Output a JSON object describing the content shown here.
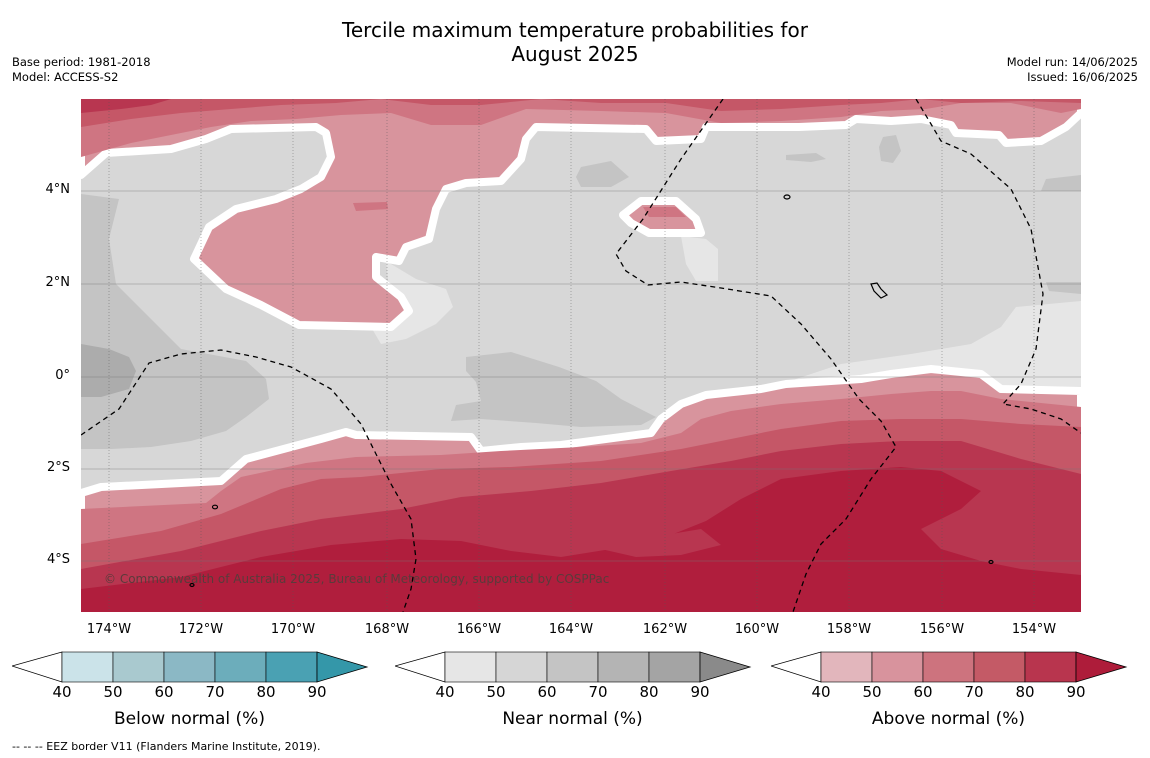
{
  "title": {
    "line1": "Tercile maximum temperature probabilities for",
    "line2": "August 2025"
  },
  "meta_left": {
    "base_period": "Base period: 1981-2018",
    "model": "Model: ACCESS-S2"
  },
  "meta_right": {
    "model_run": "Model run: 14/06/2025",
    "issued": "Issued: 16/06/2025"
  },
  "map": {
    "lon_ticks": [
      "174°W",
      "172°W",
      "170°W",
      "168°W",
      "166°W",
      "164°W",
      "162°W",
      "160°W",
      "158°W",
      "156°W",
      "154°W"
    ],
    "lat_ticks": [
      "4°N",
      "2°N",
      "0°",
      "2°S",
      "4°S"
    ],
    "copyright": "© Commonwealth of Australia 2025, Bureau of Meteorology, supported by COSPPac",
    "colors": {
      "near_normal_base": "#d7d7d7",
      "near_50": "#e6e6e6",
      "near_60": "#c4c4c4",
      "near_70": "#b0b0b0",
      "above_50": "#d8949d",
      "above_60": "#cf7582",
      "above_70": "#c55767",
      "above_80": "#b83650",
      "above_90": "#b01e3d"
    }
  },
  "colorbars": [
    {
      "id": "below",
      "label": "Below normal (%)",
      "ticks": [
        "40",
        "50",
        "60",
        "70",
        "80",
        "90"
      ],
      "colors": [
        "#cbe3e9",
        "#a9c9cf",
        "#8bb8c5",
        "#6cadbb",
        "#4aa1b3",
        "#3497a9"
      ]
    },
    {
      "id": "near",
      "label": "Near normal (%)",
      "ticks": [
        "40",
        "50",
        "60",
        "70",
        "80",
        "90"
      ],
      "colors": [
        "#e6e6e6",
        "#d6d6d6",
        "#c4c4c4",
        "#b4b4b4",
        "#a4a4a4",
        "#8a8a8a"
      ]
    },
    {
      "id": "above",
      "label": "Above normal (%)",
      "ticks": [
        "40",
        "50",
        "60",
        "70",
        "80",
        "90"
      ],
      "colors": [
        "#e2b6bc",
        "#d8939d",
        "#cd737e",
        "#c45a66",
        "#b8354e",
        "#ae1c3a"
      ]
    }
  ],
  "footer": "--  --  -- EEZ border V11 (Flanders Marine Institute, 2019)."
}
